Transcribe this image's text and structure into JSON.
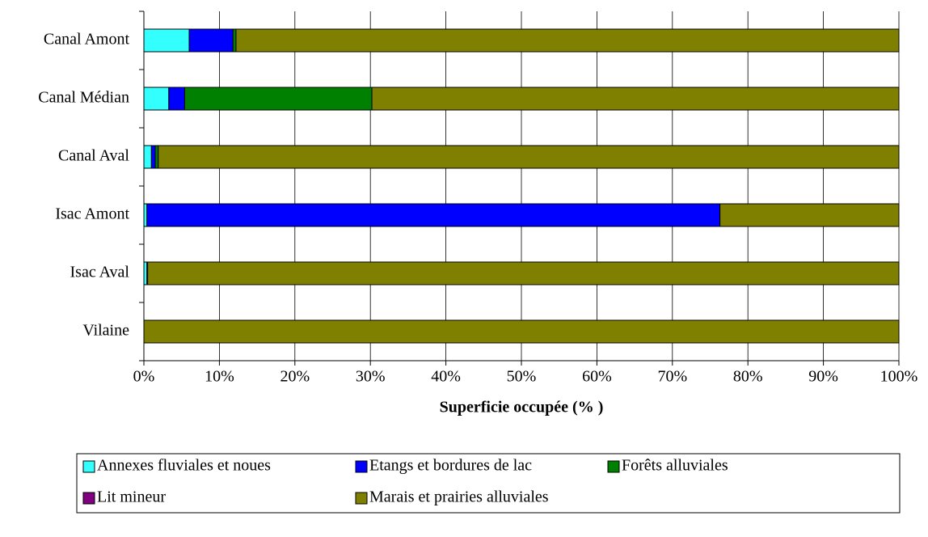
{
  "chart_data": {
    "type": "stacked-barh",
    "xlabel": "Superficie occupée (% )",
    "categories": [
      "Canal Amont",
      "Canal Médian",
      "Canal Aval",
      "Isac Amont",
      "Isac Aval",
      "Vilaine"
    ],
    "series": [
      {
        "name": "Annexes fluviales et noues",
        "color": "#33ffff",
        "values": [
          6,
          3.3,
          1,
          0.4,
          0.4,
          0
        ]
      },
      {
        "name": "Etangs et bordures de lac",
        "color": "#0000ff",
        "values": [
          5.8,
          2.1,
          0.5,
          75.9,
          0.1,
          0
        ]
      },
      {
        "name": "Forêts alluviales",
        "color": "#008000",
        "values": [
          0.4,
          24.8,
          0.4,
          0,
          0,
          0
        ]
      },
      {
        "name": "Lit mineur",
        "color": "#800080",
        "values": [
          0,
          0,
          0,
          0,
          0,
          0
        ]
      },
      {
        "name": "Marais et prairies alluviales",
        "color": "#808000",
        "values": [
          87.8,
          69.8,
          98.1,
          23.7,
          99.5,
          100
        ]
      }
    ],
    "xlim": [
      0,
      100
    ],
    "xticks": [
      {
        "value": 0,
        "label": "0%"
      },
      {
        "value": 10,
        "label": "10%"
      },
      {
        "value": 20,
        "label": "20%"
      },
      {
        "value": 30,
        "label": "30%"
      },
      {
        "value": 40,
        "label": "40%"
      },
      {
        "value": 50,
        "label": "50%"
      },
      {
        "value": 60,
        "label": "60%"
      },
      {
        "value": 70,
        "label": "70%"
      },
      {
        "value": 80,
        "label": "80%"
      },
      {
        "value": 90,
        "label": "90%"
      },
      {
        "value": 100,
        "label": "100%"
      }
    ],
    "grid": true
  }
}
